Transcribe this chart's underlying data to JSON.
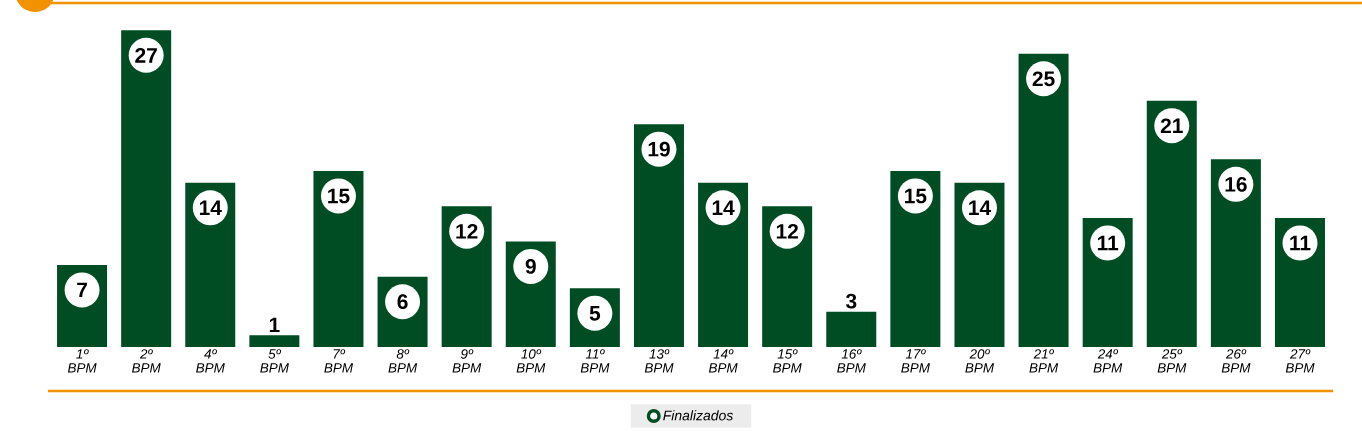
{
  "chart_data": {
    "type": "bar",
    "categories": [
      "1º BPM",
      "2º BPM",
      "4º BPM",
      "5º BPM",
      "7º BPM",
      "8º BPM",
      "9º BPM",
      "10º BPM",
      "11º BPM",
      "13º BPM",
      "14º BPM",
      "15º BPM",
      "16º BPM",
      "17º BPM",
      "20º BPM",
      "21º BPM",
      "24º BPM",
      "25º BPM",
      "26º BPM",
      "27º BPM"
    ],
    "series": [
      {
        "name": "Finalizados",
        "color": "#004d23",
        "values": [
          7,
          27,
          14,
          1,
          15,
          6,
          12,
          9,
          5,
          19,
          14,
          12,
          3,
          15,
          14,
          25,
          11,
          21,
          16,
          11
        ]
      }
    ],
    "data_labels": true,
    "legend": "bottom",
    "tick_labels": "x"
  }
}
